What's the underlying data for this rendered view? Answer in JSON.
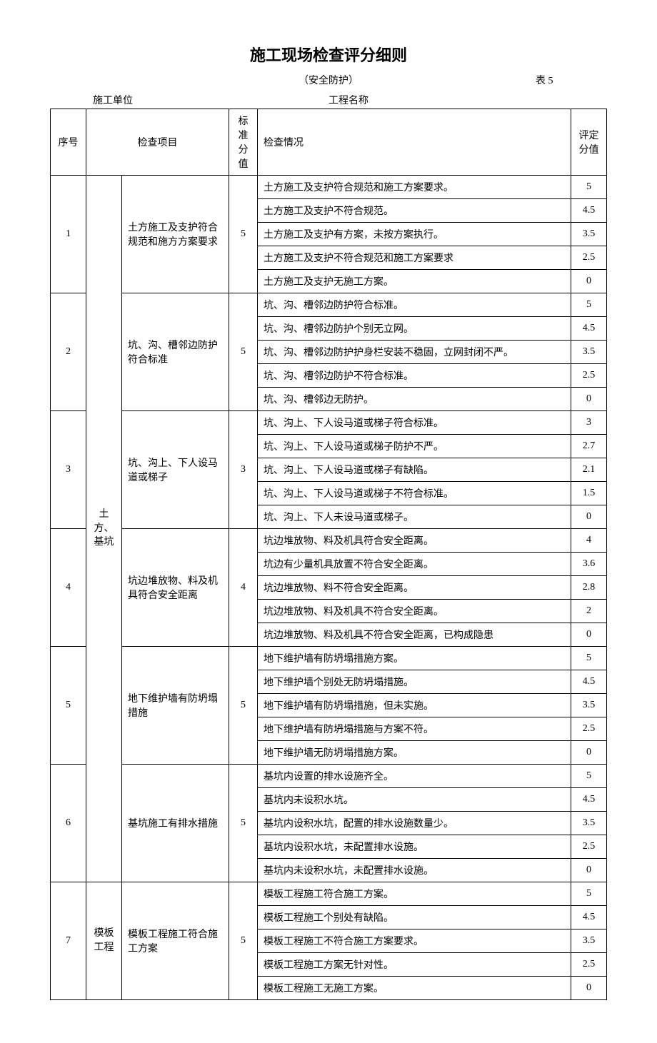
{
  "title": "施工现场检查评分细则",
  "subtitle": "（安全防护）",
  "table_number": "表 5",
  "info": {
    "construction_unit_label": "施工单位",
    "project_name_label": "工程名称"
  },
  "headers": {
    "seq": "序号",
    "check_item": "检查项目",
    "std_score": "标准分值",
    "check_status": "检查情况",
    "eval_score": "评定分值"
  },
  "categories": [
    {
      "name": "土方、基坑",
      "rows": 30
    },
    {
      "name": "模板工程",
      "rows": 5
    }
  ],
  "groups": [
    {
      "seq": "1",
      "item": "土方施工及支护符合规范和施方方案要求",
      "std": "5",
      "rows": [
        {
          "desc": "土方施工及支护符合规范和施工方案要求。",
          "score": "5"
        },
        {
          "desc": "土方施工及支护不符合规范。",
          "score": "4.5"
        },
        {
          "desc": "土方施工及支护有方案，未按方案执行。",
          "score": "3.5"
        },
        {
          "desc": "土方施工及支护不符合规范和施工方案要求",
          "score": "2.5"
        },
        {
          "desc": "土方施工及支护无施工方案。",
          "score": "0"
        }
      ]
    },
    {
      "seq": "2",
      "item": "坑、沟、槽邻边防护符合标准",
      "std": "5",
      "rows": [
        {
          "desc": "坑、沟、槽邻边防护符合标准。",
          "score": "5"
        },
        {
          "desc": "坑、沟、槽邻边防护个别无立网。",
          "score": "4.5"
        },
        {
          "desc": "坑、沟、槽邻边防护护身栏安装不稳固，立网封闭不严。",
          "score": "3.5"
        },
        {
          "desc": "坑、沟、槽邻边防护不符合标准。",
          "score": "2.5"
        },
        {
          "desc": "坑、沟、槽邻边无防护。",
          "score": "0"
        }
      ]
    },
    {
      "seq": "3",
      "item": "坑、沟上、下人设马道或梯子",
      "std": "3",
      "rows": [
        {
          "desc": "坑、沟上、下人设马道或梯子符合标准。",
          "score": "3"
        },
        {
          "desc": "坑、沟上、下人设马道或梯子防护不严。",
          "score": "2.7"
        },
        {
          "desc": "坑、沟上、下人设马道或梯子有缺陷。",
          "score": "2.1"
        },
        {
          "desc": "坑、沟上、下人设马道或梯子不符合标准。",
          "score": "1.5"
        },
        {
          "desc": "坑、沟上、下人未设马道或梯子。",
          "score": "0"
        }
      ]
    },
    {
      "seq": "4",
      "item": "坑边堆放物、料及机具符合安全距离",
      "std": "4",
      "rows": [
        {
          "desc": "坑边堆放物、料及机具符合安全距离。",
          "score": "4"
        },
        {
          "desc": "坑边有少量机具放置不符合安全距离。",
          "score": "3.6"
        },
        {
          "desc": "坑边堆放物、料不符合安全距离。",
          "score": "2.8"
        },
        {
          "desc": "坑边堆放物、料及机具不符合安全距离。",
          "score": "2"
        },
        {
          "desc": "坑边堆放物、料及机具不符合安全距离，已构成隐患",
          "score": "0"
        }
      ]
    },
    {
      "seq": "5",
      "item": "地下维护墙有防坍塌措施",
      "std": "5",
      "rows": [
        {
          "desc": "地下维护墙有防坍塌措施方案。",
          "score": "5"
        },
        {
          "desc": "地下维护墙个别处无防坍塌措施。",
          "score": "4.5"
        },
        {
          "desc": "地下维护墙有防坍塌措施，但未实施。",
          "score": "3.5"
        },
        {
          "desc": "地下维护墙有防坍塌措施与方案不符。",
          "score": "2.5"
        },
        {
          "desc": "地下维护墙无防坍塌措施方案。",
          "score": "0"
        }
      ]
    },
    {
      "seq": "6",
      "item": "基坑施工有排水措施",
      "std": "5",
      "rows": [
        {
          "desc": "基坑内设置的排水设施齐全。",
          "score": "5"
        },
        {
          "desc": "基坑内未设积水坑。",
          "score": "4.5"
        },
        {
          "desc": "基坑内设积水坑，配置的排水设施数量少。",
          "score": "3.5"
        },
        {
          "desc": "基坑内设积水坑，未配置排水设施。",
          "score": "2.5"
        },
        {
          "desc": "基坑内未设积水坑，未配置排水设施。",
          "score": "0"
        }
      ]
    },
    {
      "seq": "7",
      "item": "模板工程施工符合施工方案",
      "std": "5",
      "cat": "模板工程",
      "rows": [
        {
          "desc": "模板工程施工符合施工方案。",
          "score": "5"
        },
        {
          "desc": "模板工程施工个别处有缺陷。",
          "score": "4.5"
        },
        {
          "desc": "模板工程施工不符合施工方案要求。",
          "score": "3.5"
        },
        {
          "desc": "模板工程施工方案无针对性。",
          "score": "2.5"
        },
        {
          "desc": "模板工程施工无施工方案。",
          "score": "0"
        }
      ]
    }
  ]
}
